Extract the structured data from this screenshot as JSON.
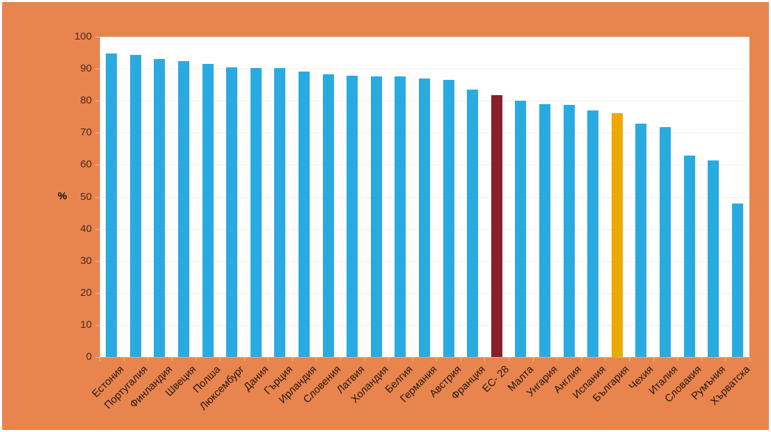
{
  "chart_data": {
    "type": "bar",
    "title": "",
    "xlabel": "",
    "ylabel": "%",
    "ylim": [
      0,
      100
    ],
    "ytick_step": 10,
    "grid": true,
    "legend": null,
    "categories": [
      "Естония",
      "Португалия",
      "Финландия",
      "Швеция",
      "Полша",
      "Люксембург",
      "Дания",
      "Гърция",
      "Ирландия",
      "Словения",
      "Латвия",
      "Холандия",
      "Белгия",
      "Германия",
      "Австрия",
      "Франция",
      "ЕС- 28",
      "Малта",
      "Унгария",
      "Англия",
      "Испания",
      "България",
      "Чехия",
      "Италия",
      "Словакия",
      "Румъния",
      "Хърватска"
    ],
    "values": [
      94.9,
      94.4,
      93.0,
      92.4,
      91.6,
      90.4,
      90.2,
      90.2,
      89.2,
      88.2,
      87.8,
      87.7,
      87.6,
      86.9,
      86.6,
      83.5,
      81.7,
      80.0,
      78.9,
      78.8,
      77.1,
      76.2,
      72.8,
      71.8,
      63.0,
      61.4,
      48.0
    ],
    "colors": {
      "default_bar": "#29ABE2",
      "highlight_bars": [
        {
          "category": "ЕС- 28",
          "index": 16,
          "color": "#8B1E2D"
        },
        {
          "category": "България",
          "index": 21,
          "color": "#EFA800"
        }
      ],
      "background": "#E8854E",
      "plot_background": "#FFFFFF",
      "axis_line": "#BDB6AE",
      "gridline": "#F2ECE4",
      "tick_mark": "#D9C2AC",
      "tick_label": "#4E2A1E",
      "category_label": "#26160F"
    }
  }
}
